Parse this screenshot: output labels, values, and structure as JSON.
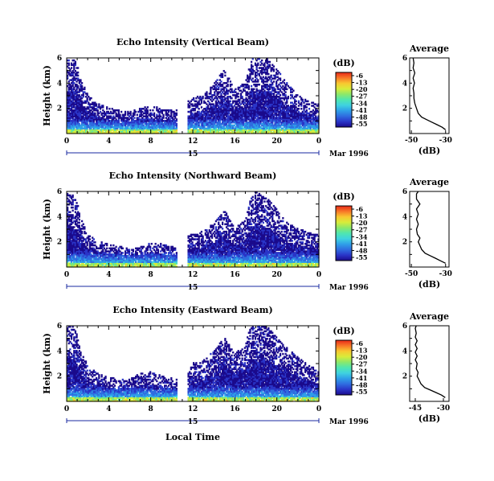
{
  "colorscale": {
    "unit_label": "(dB)",
    "ticks": [
      "-6",
      "-13",
      "-20",
      "-27",
      "-34",
      "-41",
      "-48",
      "-55"
    ],
    "stops": [
      "#1a0a8c",
      "#2a35c8",
      "#2f6ce0",
      "#2f9fe8",
      "#3fd2e0",
      "#4fe6b0",
      "#8ce86a",
      "#d8ec3a",
      "#f8c830",
      "#f87828",
      "#e82818"
    ]
  },
  "shared": {
    "ylabel": "Height (km)",
    "xlabel": "Local Time",
    "date_label": "Mar 1996",
    "day_label": "15",
    "x_ticks": [
      "0",
      "4",
      "8",
      "12",
      "16",
      "20",
      "0"
    ],
    "y_ticks": [
      "6",
      "4",
      "2"
    ],
    "profile_xlabel": "(dB)",
    "profile_title": "Average"
  },
  "chart_data": [
    {
      "type": "heatmap",
      "title": "Echo Intensity (Vertical Beam)",
      "xlabel": "",
      "ylabel": "Height (km)",
      "xlim": [
        0,
        24
      ],
      "ylim": [
        0,
        6
      ],
      "z_range_db": [
        -55,
        -6
      ],
      "data_gap_hours": [
        10.4,
        11.5
      ],
      "echo_top_km": [
        [
          0,
          6.0
        ],
        [
          0.5,
          6.0
        ],
        [
          1.0,
          5.5
        ],
        [
          1.5,
          4.0
        ],
        [
          2,
          3.0
        ],
        [
          3,
          2.3
        ],
        [
          4,
          2.0
        ],
        [
          5,
          1.8
        ],
        [
          6,
          1.7
        ],
        [
          7,
          2.0
        ],
        [
          8,
          2.1
        ],
        [
          9,
          2.0
        ],
        [
          10,
          1.8
        ],
        [
          10.4,
          1.8
        ],
        [
          11.5,
          2.5
        ],
        [
          12,
          2.8
        ],
        [
          13,
          3.0
        ],
        [
          14,
          4.0
        ],
        [
          15,
          5.0
        ],
        [
          16,
          3.5
        ],
        [
          17,
          4.0
        ],
        [
          17.5,
          6.0
        ],
        [
          18,
          6.0
        ],
        [
          19,
          6.0
        ],
        [
          20,
          5.0
        ],
        [
          21,
          4.0
        ],
        [
          22,
          3.0
        ],
        [
          23,
          2.5
        ],
        [
          24,
          2.3
        ]
      ],
      "profile": {
        "title": "Average",
        "xlabel": "(dB)",
        "x_ticks": [
          "-50",
          "-30"
        ],
        "xlim": [
          -51,
          -28
        ],
        "points": [
          [
            -30,
            0.3
          ],
          [
            -32,
            0.5
          ],
          [
            -35,
            0.7
          ],
          [
            -38,
            0.9
          ],
          [
            -41,
            1.1
          ],
          [
            -44,
            1.3
          ],
          [
            -46,
            1.6
          ],
          [
            -47,
            2.0
          ],
          [
            -48,
            2.4
          ],
          [
            -48.5,
            2.8
          ],
          [
            -48.5,
            3.2
          ],
          [
            -49,
            3.6
          ],
          [
            -48.2,
            4.0
          ],
          [
            -49,
            4.4
          ],
          [
            -48,
            4.8
          ],
          [
            -49,
            5.2
          ],
          [
            -48.5,
            5.6
          ],
          [
            -49,
            6.0
          ]
        ]
      }
    },
    {
      "type": "heatmap",
      "title": "Echo Intensity (Northward Beam)",
      "xlabel": "",
      "ylabel": "Height (km)",
      "xlim": [
        0,
        24
      ],
      "ylim": [
        0,
        6
      ],
      "z_range_db": [
        -55,
        -6
      ],
      "data_gap_hours": [
        10.4,
        11.5
      ],
      "echo_top_km": [
        [
          0,
          6.0
        ],
        [
          0.5,
          5.8
        ],
        [
          1.0,
          5.0
        ],
        [
          1.5,
          3.5
        ],
        [
          2,
          2.5
        ],
        [
          3,
          2.0
        ],
        [
          4,
          1.8
        ],
        [
          5,
          1.6
        ],
        [
          6,
          1.5
        ],
        [
          7,
          1.6
        ],
        [
          8,
          1.9
        ],
        [
          9,
          1.8
        ],
        [
          10,
          1.6
        ],
        [
          10.4,
          1.6
        ],
        [
          11.5,
          2.4
        ],
        [
          12,
          2.6
        ],
        [
          13,
          2.8
        ],
        [
          14,
          3.5
        ],
        [
          15,
          4.5
        ],
        [
          16,
          3.0
        ],
        [
          17,
          3.8
        ],
        [
          17.5,
          5.5
        ],
        [
          18,
          6.0
        ],
        [
          19,
          5.5
        ],
        [
          20,
          4.5
        ],
        [
          21,
          3.5
        ],
        [
          22,
          3.0
        ],
        [
          23,
          2.8
        ],
        [
          24,
          2.5
        ]
      ],
      "profile": {
        "title": "Average",
        "xlabel": "(dB)",
        "x_ticks": [
          "-50",
          "-30"
        ],
        "xlim": [
          -51,
          -28
        ],
        "points": [
          [
            -30,
            0.3
          ],
          [
            -33,
            0.5
          ],
          [
            -36,
            0.7
          ],
          [
            -39,
            0.9
          ],
          [
            -42,
            1.1
          ],
          [
            -44,
            1.4
          ],
          [
            -45,
            1.7
          ],
          [
            -46,
            2.0
          ],
          [
            -45,
            2.3
          ],
          [
            -46.5,
            2.6
          ],
          [
            -47,
            3.0
          ],
          [
            -46,
            3.4
          ],
          [
            -47,
            3.8
          ],
          [
            -46,
            4.2
          ],
          [
            -47,
            4.6
          ],
          [
            -45,
            5.0
          ],
          [
            -47,
            5.4
          ],
          [
            -47,
            5.8
          ],
          [
            -46,
            6.0
          ]
        ]
      }
    },
    {
      "type": "heatmap",
      "title": "Echo Intensity (Eastward Beam)",
      "xlabel": "Local Time",
      "ylabel": "Height (km)",
      "xlim": [
        0,
        24
      ],
      "ylim": [
        0,
        6
      ],
      "z_range_db": [
        -55,
        -6
      ],
      "data_gap_hours": [
        10.4,
        11.5
      ],
      "echo_top_km": [
        [
          0,
          6.0
        ],
        [
          0.5,
          6.0
        ],
        [
          1.0,
          5.3
        ],
        [
          1.5,
          3.8
        ],
        [
          2,
          2.8
        ],
        [
          3,
          2.2
        ],
        [
          4,
          1.9
        ],
        [
          5,
          1.7
        ],
        [
          6,
          1.8
        ],
        [
          7,
          2.2
        ],
        [
          8,
          2.3
        ],
        [
          9,
          2.0
        ],
        [
          10,
          1.8
        ],
        [
          10.4,
          1.8
        ],
        [
          11.5,
          2.6
        ],
        [
          12,
          3.0
        ],
        [
          13,
          3.2
        ],
        [
          14,
          4.0
        ],
        [
          15,
          5.0
        ],
        [
          16,
          3.8
        ],
        [
          17,
          4.5
        ],
        [
          17.5,
          6.0
        ],
        [
          18,
          6.0
        ],
        [
          19,
          6.0
        ],
        [
          20,
          5.0
        ],
        [
          21,
          4.2
        ],
        [
          22,
          3.5
        ],
        [
          23,
          2.8
        ],
        [
          24,
          2.5
        ]
      ],
      "profile": {
        "title": "Average",
        "xlabel": "(dB)",
        "x_ticks": [
          "-45",
          "-30"
        ],
        "xlim": [
          -48,
          -27
        ],
        "points": [
          [
            -29,
            0.3
          ],
          [
            -31,
            0.5
          ],
          [
            -34,
            0.7
          ],
          [
            -37,
            0.9
          ],
          [
            -40,
            1.1
          ],
          [
            -42,
            1.4
          ],
          [
            -43,
            1.7
          ],
          [
            -44,
            2.0
          ],
          [
            -43.5,
            2.3
          ],
          [
            -44.5,
            2.6
          ],
          [
            -44,
            3.0
          ],
          [
            -45,
            3.3
          ],
          [
            -44,
            3.6
          ],
          [
            -45,
            3.9
          ],
          [
            -44,
            4.2
          ],
          [
            -45,
            4.5
          ],
          [
            -44,
            4.8
          ],
          [
            -45,
            5.1
          ],
          [
            -44.5,
            5.4
          ],
          [
            -45,
            5.8
          ],
          [
            -44.5,
            6.0
          ]
        ]
      }
    }
  ]
}
